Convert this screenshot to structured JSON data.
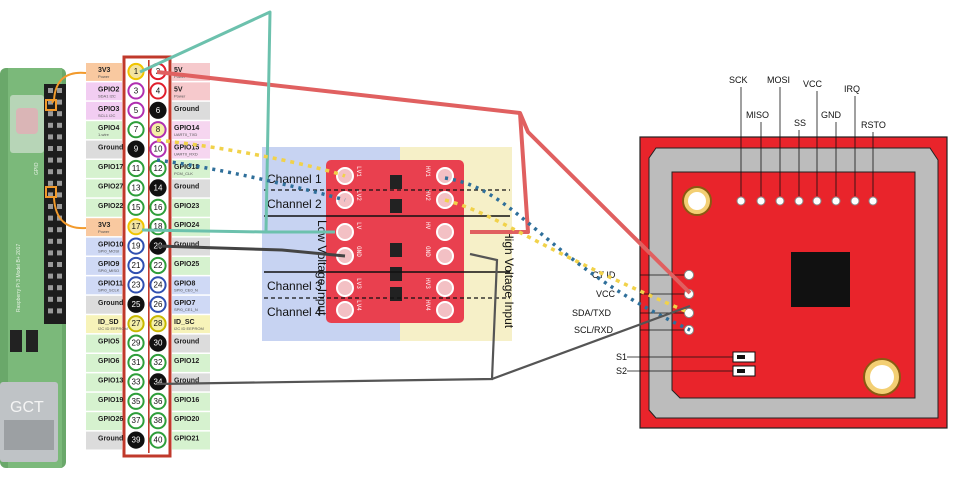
{
  "colors": {
    "power3v3": "#f9c9a0",
    "power5v": "#f6c9cc",
    "gpio": "#d6f2cf",
    "i2c": "#f2cdf2",
    "spi": "#cfd9f5",
    "uart": "#f6d6f0",
    "ground": "#dcdcdc",
    "id": "#f7f3b9",
    "wire_red": "#e06060",
    "wire_teal": "#6cc1ad",
    "wire_blue": "#2f6f9a",
    "wire_yellow": "#f1d24a",
    "wire_gray": "#444444",
    "board_red": "#e9242b",
    "low_side": "#c7d3f2",
    "high_side": "#f6f0c8"
  },
  "header_pins": [
    {
      "n": "1",
      "l": "3V3",
      "ls": "Power",
      "r": "5V",
      "rs": "Power",
      "lt": "power3v3",
      "rt": "power5v",
      "lc": "#f3e3a0",
      "rc": "#ffffff"
    },
    {
      "n": "3",
      "l": "GPIO2",
      "ls": "SDA1 I2C",
      "r": "5V",
      "rs": "Power",
      "lt": "i2c",
      "rt": "power5v",
      "lc": "#ffffff",
      "rc": "#ffffff"
    },
    {
      "n": "5",
      "l": "GPIO3",
      "ls": "SCL1 I2C",
      "r": "Ground",
      "rs": "",
      "lt": "i2c",
      "rt": "ground",
      "lc": "#ffffff",
      "rc": "#111111"
    },
    {
      "n": "7",
      "l": "GPIO4",
      "ls": "1-wire",
      "r": "GPIO14",
      "rs": "UART0_TXD",
      "lt": "gpio",
      "rt": "uart",
      "lc": "#ffffff",
      "rc": "#f4efa8"
    },
    {
      "n": "9",
      "l": "Ground",
      "ls": "",
      "r": "GPIO15",
      "rs": "UART0_RXD",
      "lt": "ground",
      "rt": "uart",
      "lc": "#111111",
      "rc": "#ffffff"
    },
    {
      "n": "11",
      "l": "GPIO17",
      "ls": "",
      "r": "GPIO18",
      "rs": "PCM_CLK",
      "lt": "gpio",
      "rt": "gpio",
      "lc": "#ffffff",
      "rc": "#ffffff"
    },
    {
      "n": "13",
      "l": "GPIO27",
      "ls": "",
      "r": "Ground",
      "rs": "",
      "lt": "gpio",
      "rt": "ground",
      "lc": "#ffffff",
      "rc": "#111111"
    },
    {
      "n": "15",
      "l": "GPIO22",
      "ls": "",
      "r": "GPIO23",
      "rs": "",
      "lt": "gpio",
      "rt": "gpio",
      "lc": "#ffffff",
      "rc": "#ffffff"
    },
    {
      "n": "17",
      "l": "3V3",
      "ls": "Power",
      "r": "GPIO24",
      "rs": "",
      "lt": "power3v3",
      "rt": "gpio",
      "lc": "#f3e3a0",
      "rc": "#ffffff"
    },
    {
      "n": "19",
      "l": "GPIO10",
      "ls": "SPI0_MOSI",
      "r": "Ground",
      "rs": "",
      "lt": "spi",
      "rt": "ground",
      "lc": "#ffffff",
      "rc": "#111111"
    },
    {
      "n": "21",
      "l": "GPIO9",
      "ls": "SPI0_MISO",
      "r": "GPIO25",
      "rs": "",
      "lt": "spi",
      "rt": "gpio",
      "lc": "#ffffff",
      "rc": "#ffffff"
    },
    {
      "n": "23",
      "l": "GPIO11",
      "ls": "SPI0_SCLK",
      "r": "GPIO8",
      "rs": "SPI0_CE0_N",
      "lt": "spi",
      "rt": "spi",
      "lc": "#ffffff",
      "rc": "#ffffff"
    },
    {
      "n": "25",
      "l": "Ground",
      "ls": "",
      "r": "GPIO7",
      "rs": "SPI0_CE1_N",
      "lt": "ground",
      "rt": "spi",
      "lc": "#111111",
      "rc": "#ffffff"
    },
    {
      "n": "27",
      "l": "ID_SD",
      "ls": "I2C ID EEPROM",
      "r": "ID_SC",
      "rs": "I2C ID EEPROM",
      "lt": "id",
      "rt": "id",
      "lc": "#f4efa8",
      "rc": "#f4efa8"
    },
    {
      "n": "29",
      "l": "GPIO5",
      "ls": "",
      "r": "Ground",
      "rs": "",
      "lt": "gpio",
      "rt": "ground",
      "lc": "#ffffff",
      "rc": "#111111"
    },
    {
      "n": "31",
      "l": "GPIO6",
      "ls": "",
      "r": "GPIO12",
      "rs": "",
      "lt": "gpio",
      "rt": "gpio",
      "lc": "#ffffff",
      "rc": "#ffffff"
    },
    {
      "n": "33",
      "l": "GPIO13",
      "ls": "",
      "r": "Ground",
      "rs": "",
      "lt": "gpio",
      "rt": "ground",
      "lc": "#ffffff",
      "rc": "#111111"
    },
    {
      "n": "35",
      "l": "GPIO19",
      "ls": "",
      "r": "GPIO16",
      "rs": "",
      "lt": "gpio",
      "rt": "gpio",
      "lc": "#ffffff",
      "rc": "#ffffff"
    },
    {
      "n": "37",
      "l": "GPIO26",
      "ls": "",
      "r": "GPIO20",
      "rs": "",
      "lt": "gpio",
      "rt": "gpio",
      "lc": "#ffffff",
      "rc": "#ffffff"
    },
    {
      "n": "39",
      "l": "Ground",
      "ls": "",
      "r": "GPIO21",
      "rs": "",
      "lt": "ground",
      "rt": "gpio",
      "lc": "#111111",
      "rc": "#ffffff"
    }
  ],
  "pi_board": {
    "brand": "GCT",
    "silk_left": "Raspberry Pi 3 Model B+ 2017",
    "silk_gpio": "GPIO"
  },
  "converter": {
    "channels": [
      "Channel 1",
      "Channel 2",
      "Channel 3",
      "Channel 4"
    ],
    "low_side_label": "Low Voltage Input",
    "high_side_label": "High Voltage Input",
    "silk_left": [
      "LV1",
      "LV2",
      "LV",
      "GND",
      "LV3",
      "LV4"
    ],
    "silk_right": [
      "HV1",
      "HV2",
      "HV",
      "GND",
      "HV3",
      "HV4"
    ]
  },
  "rfid": {
    "top_pins": [
      "SCK",
      "MISO",
      "MOSI",
      "SS",
      "VCC",
      "GND",
      "IRQ",
      "RSTO"
    ],
    "side_pins": [
      "CT ID",
      "VCC",
      "SDA/TXD",
      "SCL/RXD"
    ],
    "switches": [
      "S1",
      "S2"
    ]
  }
}
